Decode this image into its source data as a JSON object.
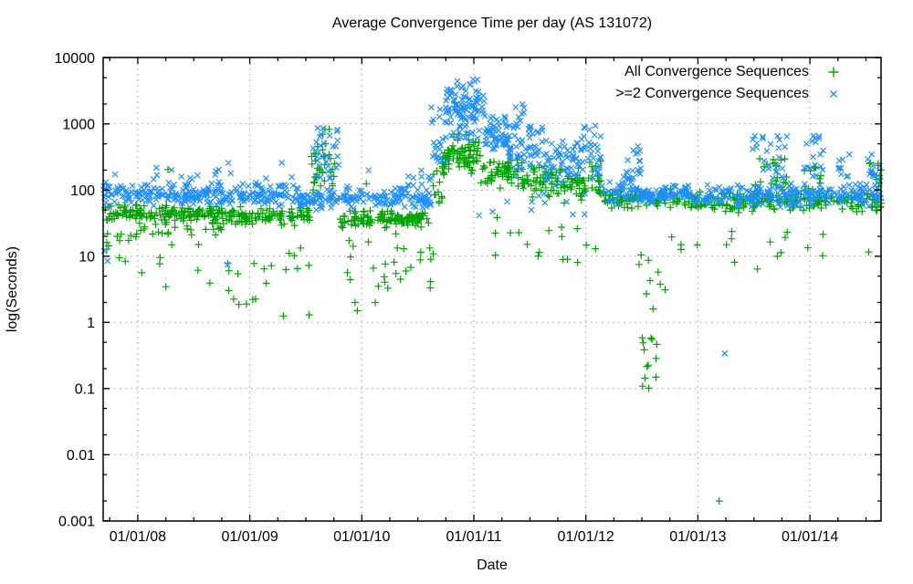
{
  "chart_data": {
    "type": "scatter",
    "title": "Average Convergence Time per day (AS 131072)",
    "xlabel": "Date",
    "ylabel": "log(Seconds)",
    "x_axis": {
      "kind": "date",
      "range_years": [
        2007.69,
        2014.635
      ],
      "major_tick_years": [
        2008,
        2009,
        2010,
        2011,
        2012,
        2013,
        2014
      ],
      "tick_labels": [
        "01/01/08",
        "01/01/09",
        "01/01/10",
        "01/01/11",
        "01/01/12",
        "01/01/13",
        "01/01/14"
      ],
      "minor_tick_interval_years": 0.25
    },
    "y_axis": {
      "scale": "log",
      "range": [
        0.001,
        10000
      ],
      "major_ticks": [
        10000,
        1000,
        100,
        10,
        1,
        0.1,
        0.01,
        0.001
      ],
      "tick_labels": [
        "10000",
        "1000",
        "100",
        "10",
        "1",
        "0.1",
        "0.01",
        "0.001"
      ],
      "minor_tick_mantissas": [
        2,
        5
      ]
    },
    "grid": {
      "show": true,
      "style": "dashed",
      "color": "#b3b3b3"
    },
    "legend": {
      "position": "top-right-inside"
    },
    "point_format": "clusters: [x_start_year, x_end_year, count, y_min_seconds, y_max_seconds, distribution]; outliers: [x_year, y_seconds]",
    "series": [
      {
        "name": "All Convergence Sequences",
        "marker": "plus",
        "color": "#00A400",
        "clusters": [
          [
            2007.69,
            2008.75,
            150,
            32,
            62,
            "band"
          ],
          [
            2007.69,
            2008.75,
            28,
            20,
            34,
            "spread"
          ],
          [
            2008.75,
            2009.55,
            110,
            28,
            58,
            "band"
          ],
          [
            2009.55,
            2009.8,
            34,
            60,
            420,
            "spread"
          ],
          [
            2009.58,
            2009.72,
            7,
            380,
            850,
            "spread"
          ],
          [
            2009.8,
            2010.62,
            120,
            26,
            52,
            "band"
          ],
          [
            2010.62,
            2010.74,
            14,
            60,
            220,
            "spread"
          ],
          [
            2010.72,
            2011.06,
            70,
            170,
            580,
            "band"
          ],
          [
            2010.82,
            2011.02,
            8,
            450,
            750,
            "spread"
          ],
          [
            2011.06,
            2011.4,
            55,
            90,
            340,
            "band"
          ],
          [
            2011.4,
            2011.78,
            60,
            70,
            300,
            "band"
          ],
          [
            2011.78,
            2012.0,
            40,
            60,
            240,
            "band"
          ],
          [
            2012.0,
            2012.14,
            22,
            80,
            320,
            "spread"
          ],
          [
            2012.14,
            2012.62,
            65,
            48,
            110,
            "band"
          ],
          [
            2012.62,
            2013.2,
            70,
            48,
            105,
            "band"
          ],
          [
            2013.2,
            2014.64,
            190,
            45,
            105,
            "band"
          ],
          [
            2013.5,
            2013.8,
            20,
            100,
            300,
            "spread"
          ],
          [
            2013.95,
            2014.1,
            10,
            100,
            240,
            "spread"
          ],
          [
            2014.5,
            2014.64,
            12,
            100,
            280,
            "spread"
          ],
          [
            2007.69,
            2008.1,
            12,
            4,
            24,
            "spread"
          ],
          [
            2008.1,
            2008.85,
            10,
            3,
            18,
            "spread"
          ],
          [
            2008.85,
            2009.15,
            8,
            1.6,
            8,
            "spread"
          ],
          [
            2009.15,
            2009.55,
            7,
            2.5,
            14,
            "spread"
          ],
          [
            2009.8,
            2010.35,
            14,
            3,
            22,
            "spread"
          ],
          [
            2010.3,
            2010.72,
            12,
            3,
            15,
            "spread"
          ],
          [
            2011.0,
            2011.7,
            9,
            10,
            40,
            "spread"
          ],
          [
            2011.7,
            2012.35,
            8,
            8,
            30,
            "spread"
          ],
          [
            2012.42,
            2012.72,
            7,
            2.5,
            11,
            "spread"
          ],
          [
            2012.5,
            2012.64,
            13,
            0.1,
            0.65,
            "spread"
          ],
          [
            2012.75,
            2013.55,
            9,
            6,
            25,
            "spread"
          ],
          [
            2013.6,
            2014.6,
            9,
            8,
            30,
            "spread"
          ]
        ],
        "outliers": [
          [
            2008.27,
            205
          ],
          [
            2008.97,
            1.9
          ],
          [
            2009.3,
            1.25
          ],
          [
            2009.53,
            1.3
          ],
          [
            2009.94,
            2.0
          ],
          [
            2009.96,
            1.5
          ],
          [
            2010.04,
            125
          ],
          [
            2010.12,
            2.0
          ],
          [
            2010.2,
            4.9
          ],
          [
            2012.54,
            2.7
          ],
          [
            2012.6,
            1.6
          ],
          [
            2013.19,
            0.002
          ]
        ]
      },
      {
        "name": ">=2 Convergence Sequences",
        "marker": "cross",
        "color": "#1E8FFF",
        "clusters": [
          [
            2007.69,
            2009.4,
            250,
            55,
            135,
            "band"
          ],
          [
            2007.69,
            2009.4,
            18,
            130,
            260,
            "spread"
          ],
          [
            2009.4,
            2010.62,
            170,
            50,
            120,
            "band"
          ],
          [
            2009.55,
            2009.8,
            30,
            140,
            950,
            "spread"
          ],
          [
            2010.4,
            2010.62,
            10,
            100,
            200,
            "spread"
          ],
          [
            2010.62,
            2010.76,
            22,
            250,
            1800,
            "spread"
          ],
          [
            2010.74,
            2011.1,
            105,
            500,
            4200,
            "band"
          ],
          [
            2010.84,
            2011.04,
            8,
            3200,
            5500,
            "spread"
          ],
          [
            2011.1,
            2011.32,
            55,
            280,
            1700,
            "band"
          ],
          [
            2011.32,
            2011.62,
            55,
            150,
            1100,
            "band"
          ],
          [
            2011.35,
            2011.55,
            7,
            1000,
            2100,
            "spread"
          ],
          [
            2011.62,
            2011.98,
            65,
            100,
            800,
            "band"
          ],
          [
            2011.98,
            2012.14,
            28,
            140,
            950,
            "spread"
          ],
          [
            2012.14,
            2012.48,
            45,
            60,
            170,
            "band"
          ],
          [
            2012.33,
            2012.5,
            16,
            120,
            480,
            "spread"
          ],
          [
            2012.48,
            2013.2,
            105,
            52,
            130,
            "band"
          ],
          [
            2013.2,
            2014.64,
            200,
            52,
            130,
            "band"
          ],
          [
            2013.48,
            2013.8,
            26,
            150,
            680,
            "spread"
          ],
          [
            2013.95,
            2014.12,
            18,
            150,
            680,
            "spread"
          ],
          [
            2014.25,
            2014.45,
            10,
            120,
            380,
            "spread"
          ],
          [
            2014.5,
            2014.64,
            13,
            120,
            430,
            "spread"
          ],
          [
            2011.0,
            2012.0,
            12,
            40,
            90,
            "spread"
          ]
        ],
        "outliers": [
          [
            2007.7,
            12
          ],
          [
            2007.73,
            8.5
          ],
          [
            2008.8,
            7.5
          ],
          [
            2010.06,
            200
          ],
          [
            2013.24,
            0.34
          ]
        ]
      }
    ]
  },
  "colors": {
    "background": "#ffffff",
    "frame": "#000000",
    "text": "#000000",
    "grid": "#b3b3b3"
  }
}
